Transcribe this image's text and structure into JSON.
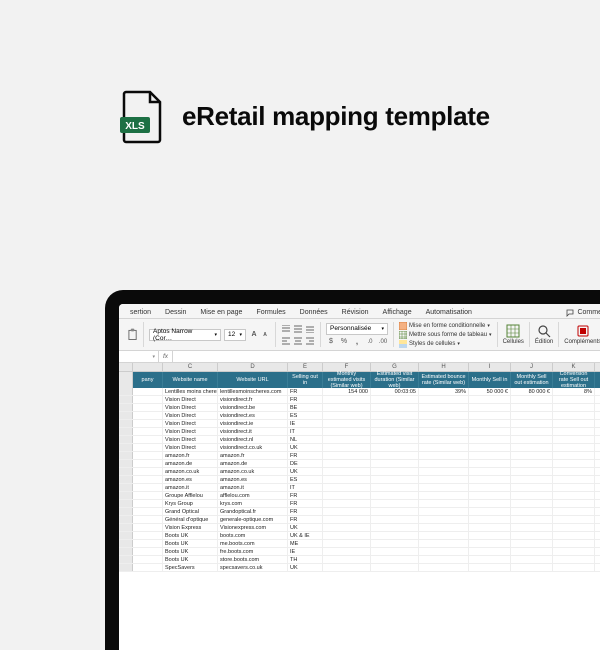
{
  "page": {
    "background": "#f2f2f2",
    "title": "eRetail mapping template",
    "icon_label": "XLS",
    "icon_color": "#1d7044"
  },
  "ribbon": {
    "tabs": [
      "sertion",
      "Dessin",
      "Mise en page",
      "Formules",
      "Données",
      "Révision",
      "Affichage",
      "Automatisation"
    ],
    "comments_label": "Commentaires"
  },
  "toolbar": {
    "font_name": "Aptos Narrow (Cor…",
    "font_size": "12",
    "number_format": "Personnalisée",
    "cond_format": "Mise en forme conditionnelle",
    "as_table": "Mettre sous forme de tableau",
    "cell_styles": "Styles de cellules",
    "cells": "Cellules",
    "edition": "Édition",
    "addins": "Compléments"
  },
  "formula_bar": {
    "name_box": "",
    "fx": "fx"
  },
  "columns": {
    "widths": [
      30,
      55,
      70,
      35,
      48,
      48,
      50,
      42,
      42,
      42
    ],
    "letters": [
      "",
      "C",
      "D",
      "E",
      "F",
      "G",
      "H",
      "I",
      "J",
      "K"
    ],
    "headers": [
      "pany",
      "Website name",
      "Website URL",
      "Selling out in",
      "Monthly estimated visits (Similar web)",
      "Estimated visit duration (Similar web)",
      "Estimated bounce rate (Similar web)",
      "Monthly Sell in",
      "Monthly Sell out estimation",
      "Conversion rate Sell out estimation"
    ]
  },
  "colors": {
    "header_bg": "#2b6f8a",
    "header_brd": "#3a7d96",
    "grid": "#eeeeee",
    "col_bg": "#e8e8e8"
  },
  "rows": [
    {
      "c": "",
      "name": "Lentilles moins cheres",
      "url": "lentillesmoinscheres.com",
      "sell": "FR",
      "visits": "154 000",
      "dur": "00:03:05",
      "bounce": "39%",
      "sellin": "50 000 €",
      "sellout": "80 000 €",
      "conv": "8%"
    },
    {
      "c": "",
      "name": "Vision Direct",
      "url": "visiondirect.fr",
      "sell": "FR",
      "visits": "",
      "dur": "",
      "bounce": "",
      "sellin": "",
      "sellout": "",
      "conv": ""
    },
    {
      "c": "",
      "name": "Vision Direct",
      "url": "visiondirect.be",
      "sell": "BE",
      "visits": "",
      "dur": "",
      "bounce": "",
      "sellin": "",
      "sellout": "",
      "conv": ""
    },
    {
      "c": "",
      "name": "Vision Direct",
      "url": "visiondirect.es",
      "sell": "ES",
      "visits": "",
      "dur": "",
      "bounce": "",
      "sellin": "",
      "sellout": "",
      "conv": ""
    },
    {
      "c": "",
      "name": "Vision Direct",
      "url": "visiondirect.ie",
      "sell": "IE",
      "visits": "",
      "dur": "",
      "bounce": "",
      "sellin": "",
      "sellout": "",
      "conv": ""
    },
    {
      "c": "",
      "name": "Vision Direct",
      "url": "visiondirect.it",
      "sell": "IT",
      "visits": "",
      "dur": "",
      "bounce": "",
      "sellin": "",
      "sellout": "",
      "conv": ""
    },
    {
      "c": "",
      "name": "Vision Direct",
      "url": "visiondirect.nl",
      "sell": "NL",
      "visits": "",
      "dur": "",
      "bounce": "",
      "sellin": "",
      "sellout": "",
      "conv": ""
    },
    {
      "c": "",
      "name": "Vision Direct",
      "url": "visiondirect.co.uk",
      "sell": "UK",
      "visits": "",
      "dur": "",
      "bounce": "",
      "sellin": "",
      "sellout": "",
      "conv": ""
    },
    {
      "c": "",
      "name": "amazon.fr",
      "url": "amazon.fr",
      "sell": "FR",
      "visits": "",
      "dur": "",
      "bounce": "",
      "sellin": "",
      "sellout": "",
      "conv": ""
    },
    {
      "c": "",
      "name": "amazon.de",
      "url": "amazon.de",
      "sell": "DE",
      "visits": "",
      "dur": "",
      "bounce": "",
      "sellin": "",
      "sellout": "",
      "conv": ""
    },
    {
      "c": "",
      "name": "amazon.co.uk",
      "url": "amazon.co.uk",
      "sell": "UK",
      "visits": "",
      "dur": "",
      "bounce": "",
      "sellin": "",
      "sellout": "",
      "conv": ""
    },
    {
      "c": "",
      "name": "amazon.es",
      "url": "amazon.es",
      "sell": "ES",
      "visits": "",
      "dur": "",
      "bounce": "",
      "sellin": "",
      "sellout": "",
      "conv": ""
    },
    {
      "c": "",
      "name": "amazon.it",
      "url": "amazon.it",
      "sell": "IT",
      "visits": "",
      "dur": "",
      "bounce": "",
      "sellin": "",
      "sellout": "",
      "conv": ""
    },
    {
      "c": "",
      "name": "Groupe Afflelou",
      "url": "afflelou.com",
      "sell": "FR",
      "visits": "",
      "dur": "",
      "bounce": "",
      "sellin": "",
      "sellout": "",
      "conv": ""
    },
    {
      "c": "",
      "name": "Krys Group",
      "url": "krys.com",
      "sell": "FR",
      "visits": "",
      "dur": "",
      "bounce": "",
      "sellin": "",
      "sellout": "",
      "conv": ""
    },
    {
      "c": "",
      "name": "Grand Optical",
      "url": "Grandoptical.fr",
      "sell": "FR",
      "visits": "",
      "dur": "",
      "bounce": "",
      "sellin": "",
      "sellout": "",
      "conv": ""
    },
    {
      "c": "",
      "name": "Général d'optique",
      "url": "generale-optique.com",
      "sell": "FR",
      "visits": "",
      "dur": "",
      "bounce": "",
      "sellin": "",
      "sellout": "",
      "conv": ""
    },
    {
      "c": "",
      "name": "Vision Express",
      "url": "Visionexpress.com",
      "sell": "UK",
      "visits": "",
      "dur": "",
      "bounce": "",
      "sellin": "",
      "sellout": "",
      "conv": ""
    },
    {
      "c": "",
      "name": "Boots UK",
      "url": "boots.com",
      "sell": "UK & IE",
      "visits": "",
      "dur": "",
      "bounce": "",
      "sellin": "",
      "sellout": "",
      "conv": ""
    },
    {
      "c": "",
      "name": "Boots UK",
      "url": "me.boots.com",
      "sell": "ME",
      "visits": "",
      "dur": "",
      "bounce": "",
      "sellin": "",
      "sellout": "",
      "conv": ""
    },
    {
      "c": "",
      "name": "Boots UK",
      "url": "fre.boots.com",
      "sell": "IE",
      "visits": "",
      "dur": "",
      "bounce": "",
      "sellin": "",
      "sellout": "",
      "conv": ""
    },
    {
      "c": "",
      "name": "Boots UK",
      "url": "store.boots.com",
      "sell": "TH",
      "visits": "",
      "dur": "",
      "bounce": "",
      "sellin": "",
      "sellout": "",
      "conv": ""
    },
    {
      "c": "",
      "name": "SpecSavers",
      "url": "specsavers.co.uk",
      "sell": "UK",
      "visits": "",
      "dur": "",
      "bounce": "",
      "sellin": "",
      "sellout": "",
      "conv": ""
    }
  ]
}
